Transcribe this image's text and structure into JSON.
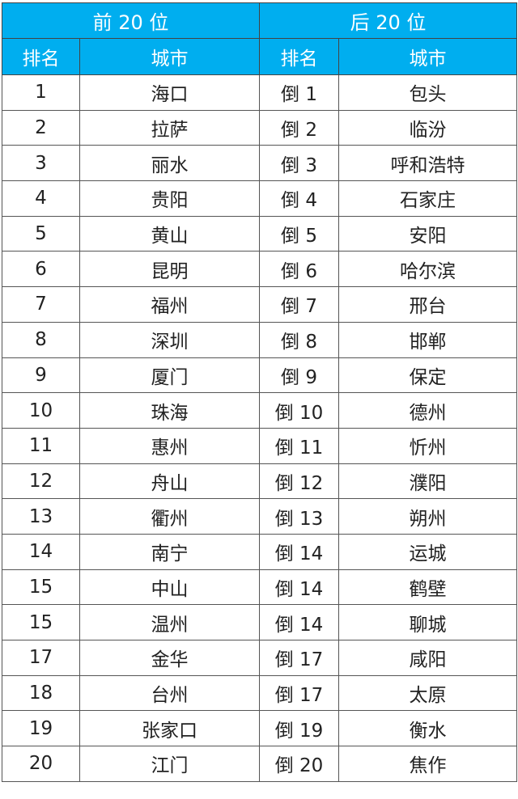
{
  "header": {
    "top_group": "前 20 位",
    "bottom_group": "后 20 位",
    "rank_label": "排名",
    "city_label": "城市"
  },
  "colors": {
    "header_bg": "#00aeef",
    "header_text": "#ffffff",
    "border": "#555555"
  },
  "rows": [
    {
      "top_rank": "1",
      "top_city": "海口",
      "bottom_rank": "倒 1",
      "bottom_city": "包头"
    },
    {
      "top_rank": "2",
      "top_city": "拉萨",
      "bottom_rank": "倒 2",
      "bottom_city": "临汾"
    },
    {
      "top_rank": "3",
      "top_city": "丽水",
      "bottom_rank": "倒 3",
      "bottom_city": "呼和浩特"
    },
    {
      "top_rank": "4",
      "top_city": "贵阳",
      "bottom_rank": "倒 4",
      "bottom_city": "石家庄"
    },
    {
      "top_rank": "5",
      "top_city": "黄山",
      "bottom_rank": "倒 5",
      "bottom_city": "安阳"
    },
    {
      "top_rank": "6",
      "top_city": "昆明",
      "bottom_rank": "倒 6",
      "bottom_city": "哈尔滨"
    },
    {
      "top_rank": "7",
      "top_city": "福州",
      "bottom_rank": "倒 7",
      "bottom_city": "邢台"
    },
    {
      "top_rank": "8",
      "top_city": "深圳",
      "bottom_rank": "倒 8",
      "bottom_city": "邯郸"
    },
    {
      "top_rank": "9",
      "top_city": "厦门",
      "bottom_rank": "倒 9",
      "bottom_city": "保定"
    },
    {
      "top_rank": "10",
      "top_city": "珠海",
      "bottom_rank": "倒 10",
      "bottom_city": "德州"
    },
    {
      "top_rank": "11",
      "top_city": "惠州",
      "bottom_rank": "倒 11",
      "bottom_city": "忻州"
    },
    {
      "top_rank": "12",
      "top_city": "舟山",
      "bottom_rank": "倒 12",
      "bottom_city": "濮阳"
    },
    {
      "top_rank": "13",
      "top_city": "衢州",
      "bottom_rank": "倒 13",
      "bottom_city": "朔州"
    },
    {
      "top_rank": "14",
      "top_city": "南宁",
      "bottom_rank": "倒 14",
      "bottom_city": "运城"
    },
    {
      "top_rank": "15",
      "top_city": "中山",
      "bottom_rank": "倒 14",
      "bottom_city": "鹤壁"
    },
    {
      "top_rank": "15",
      "top_city": "温州",
      "bottom_rank": "倒 14",
      "bottom_city": "聊城"
    },
    {
      "top_rank": "17",
      "top_city": "金华",
      "bottom_rank": "倒 17",
      "bottom_city": "咸阳"
    },
    {
      "top_rank": "18",
      "top_city": "台州",
      "bottom_rank": "倒 17",
      "bottom_city": "太原"
    },
    {
      "top_rank": "19",
      "top_city": "张家口",
      "bottom_rank": "倒 19",
      "bottom_city": "衡水"
    },
    {
      "top_rank": "20",
      "top_city": "江门",
      "bottom_rank": "倒 20",
      "bottom_city": "焦作"
    }
  ]
}
